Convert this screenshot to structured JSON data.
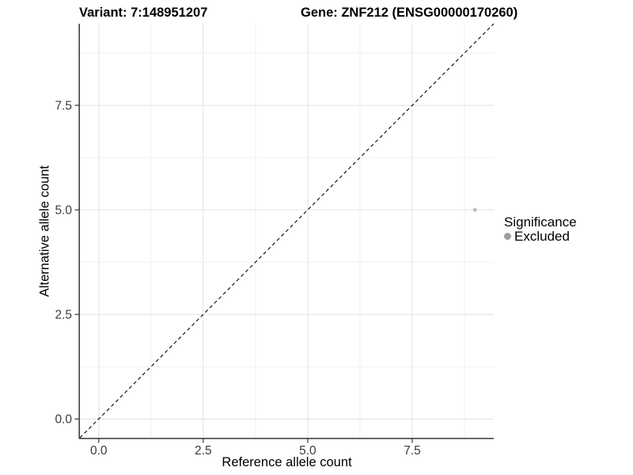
{
  "chart_data": {
    "type": "scatter",
    "title_left": "Variant: 7:148951207",
    "title_right": "Gene: ZNF212 (ENSG00000170260)",
    "xlabel": "Reference allele count",
    "ylabel": "Alternative allele count",
    "xlim": [
      -0.45,
      9.45
    ],
    "ylim": [
      -0.45,
      9.45
    ],
    "major_breaks": [
      0,
      2.5,
      5,
      7.5
    ],
    "minor_breaks": [
      1.25,
      3.75,
      6.25,
      8.75
    ],
    "tick_labels": [
      "0.0",
      "2.5",
      "5.0",
      "7.5"
    ],
    "grid": "major-and-minor",
    "identity_line": {
      "equation": "y = x",
      "style": "dashed",
      "color": "#000000",
      "from": -0.45,
      "to": 9.45
    },
    "points": [
      {
        "x": 9,
        "y": 5,
        "significance": "Excluded",
        "color": "#bdbdbd",
        "radius": 2.4
      }
    ],
    "legend": {
      "title": "Significance",
      "position": "right",
      "entries": [
        {
          "label": "Excluded",
          "color": "#9e9e9e"
        }
      ]
    }
  },
  "colors": {
    "background": "#ffffff",
    "grid_major": "#e4e4e4",
    "grid_minor": "#f0f0f0",
    "axis_line": "#474747",
    "tick": "#333333",
    "tick_label": "#3a3a3a",
    "text": "#000000"
  }
}
